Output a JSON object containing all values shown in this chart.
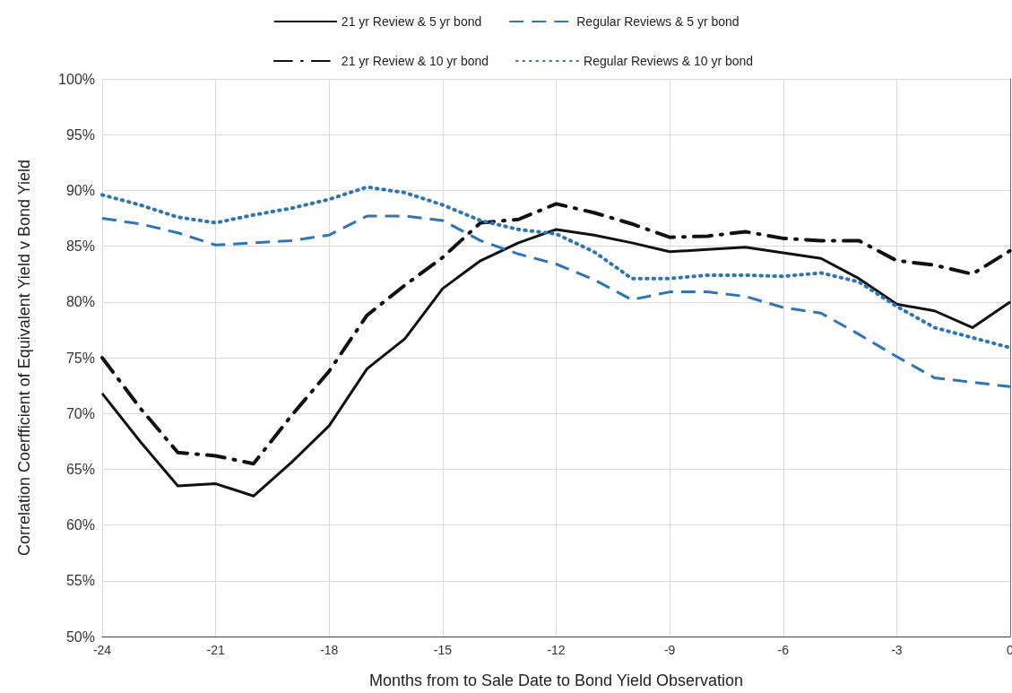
{
  "chart_data": {
    "type": "line",
    "xlabel": "Months from to Sale Date to Bond Yield Observation",
    "ylabel": "Correlation Coerfficient of Equivalent Yield v Bond Yield",
    "x": [
      -24,
      -23,
      -22,
      -21,
      -20,
      -19,
      -18,
      -17,
      -16,
      -15,
      -14,
      -13,
      -12,
      -11,
      -10,
      -9,
      -8,
      -7,
      -6,
      -5,
      -4,
      -3,
      -2,
      -1,
      0
    ],
    "series": [
      {
        "name": "21 yr Review & 5 yr bond",
        "color": "#111111",
        "line_style": "solid",
        "values": [
          71.8,
          67.5,
          63.5,
          63.7,
          62.6,
          65.6,
          68.9,
          74.0,
          76.7,
          81.2,
          83.7,
          85.3,
          86.5,
          86.0,
          85.3,
          84.5,
          84.7,
          84.9,
          84.4,
          83.9,
          82.1,
          79.8,
          79.2,
          77.7,
          80.0
        ]
      },
      {
        "name": "Regular Reviews & 5 yr bond",
        "color": "#2e75b6",
        "line_style": "dashed",
        "values": [
          87.5,
          87.0,
          86.2,
          85.1,
          85.3,
          85.5,
          86.0,
          87.7,
          87.7,
          87.3,
          85.5,
          84.3,
          83.4,
          82.0,
          80.2,
          80.9,
          80.9,
          80.5,
          79.5,
          79.0,
          77.1,
          75.1,
          73.2,
          72.8,
          72.4
        ]
      },
      {
        "name": "21 yr Review & 10 yr bond",
        "color": "#111111",
        "line_style": "dashdot",
        "values": [
          75.0,
          70.5,
          66.5,
          66.2,
          65.5,
          69.8,
          73.8,
          78.8,
          81.5,
          84.0,
          87.1,
          87.4,
          88.8,
          88.0,
          87.0,
          85.8,
          85.9,
          86.3,
          85.7,
          85.5,
          85.5,
          83.7,
          83.3,
          82.5,
          84.6
        ]
      },
      {
        "name": "Regular Reviews & 10 yr bond",
        "color": "#2e75b6",
        "line_style": "dotted",
        "values": [
          89.6,
          88.7,
          87.6,
          87.1,
          87.8,
          88.4,
          89.2,
          90.3,
          89.8,
          88.7,
          87.3,
          86.5,
          86.1,
          84.5,
          82.1,
          82.1,
          82.4,
          82.4,
          82.3,
          82.6,
          81.8,
          79.6,
          77.7,
          76.8,
          75.9
        ]
      }
    ],
    "xlim": [
      -24,
      0
    ],
    "xticks": [
      -24,
      -21,
      -18,
      -15,
      -12,
      -9,
      -6,
      -3,
      0
    ],
    "ylim": [
      50,
      100
    ],
    "yticks": [
      {
        "value": 50,
        "label": "50%"
      },
      {
        "value": 55,
        "label": "55%"
      },
      {
        "value": 60,
        "label": "60%"
      },
      {
        "value": 65,
        "label": "65%"
      },
      {
        "value": 70,
        "label": "70%"
      },
      {
        "value": 75,
        "label": "75%"
      },
      {
        "value": 80,
        "label": "80%"
      },
      {
        "value": 85,
        "label": "85%"
      },
      {
        "value": 90,
        "label": "90%"
      },
      {
        "value": 95,
        "label": "95%"
      },
      {
        "value": 100,
        "label": "100%"
      }
    ],
    "grid": true,
    "legend": "top",
    "marker": "none"
  }
}
